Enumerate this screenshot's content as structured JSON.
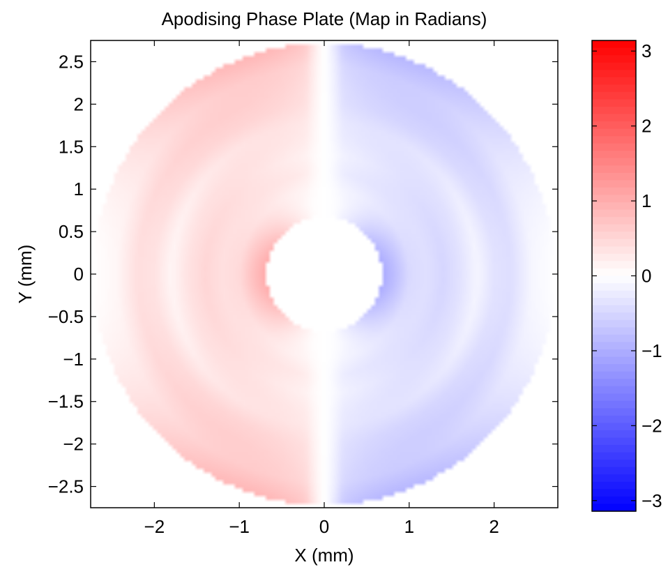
{
  "chart_data": {
    "type": "heatmap",
    "title": "Apodising Phase Plate (Map in Radians)",
    "xlabel": "X (mm)",
    "ylabel": "Y (mm)",
    "xlim": [
      -2.75,
      2.75
    ],
    "ylim": [
      -2.75,
      2.75
    ],
    "xticks": [
      -2,
      -1,
      0,
      1,
      2
    ],
    "xtick_labels": [
      "−2",
      "−1",
      "0",
      "1",
      "2"
    ],
    "yticks": [
      2.5,
      2,
      1.5,
      1,
      0.5,
      0,
      -0.5,
      -1,
      -1.5,
      -2,
      -2.5
    ],
    "ytick_labels": [
      "2.5",
      "2",
      "1.5",
      "1",
      "0.5",
      "0",
      "−0.5",
      "−1",
      "−1.5",
      "−2",
      "−2.5"
    ],
    "colorbar": {
      "range": [
        -3.1416,
        3.1416
      ],
      "ticks": [
        3,
        2,
        1,
        0,
        -1,
        -2,
        -3
      ],
      "tick_labels": [
        "3",
        "2",
        "1",
        "0",
        "−1",
        "−2",
        "−3"
      ],
      "colors": [
        "#0000ff",
        "#ffffff",
        "#ff0000"
      ]
    },
    "aperture": {
      "outer_radius_mm": 2.72,
      "inner_radius_mm": 0.68
    },
    "profile": {
      "radius_mm": [
        0.68,
        0.85,
        1.0,
        1.2,
        1.4,
        1.6,
        1.8,
        2.0,
        2.2,
        2.45,
        2.72
      ],
      "phase_rad_x_axis": [
        1.05,
        0.75,
        0.45,
        0.38,
        0.5,
        0.35,
        0.12,
        0.35,
        0.4,
        0.1,
        0.0
      ],
      "phase_rad_edge_near_y_axis": [
        0.0,
        0.0,
        0.1,
        0.3,
        0.2,
        0.35,
        0.45,
        0.6,
        0.7,
        0.85,
        1.25
      ]
    },
    "grid": false,
    "legend": "colorbar-right"
  }
}
